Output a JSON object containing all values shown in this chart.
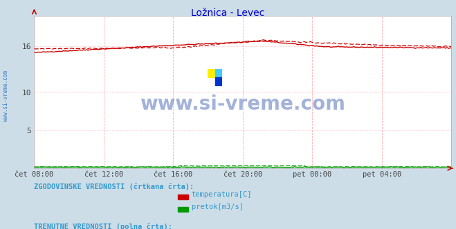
{
  "title": "Ložnica - Levec",
  "title_color": "#0000cc",
  "bg_color": "#ccdde8",
  "plot_bg_color": "#ffffff",
  "grid_color_h": "#ffaaaa",
  "grid_color_v": "#ffaaaa",
  "axis_color": "#cc0000",
  "watermark_text": "www.si-vreme.com",
  "watermark_color": "#3355aa",
  "left_label": "www.si-vreme.com",
  "left_label_color": "#3377cc",
  "ylim": [
    0,
    20
  ],
  "yticks": [
    5,
    10,
    16
  ],
  "ytick_labels": [
    "5",
    "10",
    "16"
  ],
  "xtick_labels": [
    "čet 08:00",
    "čet 12:00",
    "čet 16:00",
    "čet 20:00",
    "pet 00:00",
    "pet 04:00"
  ],
  "n_points": 288,
  "temp_color": "#cc0000",
  "flow_color": "#009900",
  "legend_section1": "ZGODOVINSKE VREDNOSTI (črtkana črta):",
  "legend_section2": "TRENUTNE VREDNOSTI (polna črta):",
  "legend_items": [
    "temperatura[C]",
    "pretok[m3/s]"
  ],
  "legend_text_color": "#3399cc",
  "logo_yellow": "#ffee00",
  "logo_cyan": "#44ccff",
  "logo_blue": "#0033cc"
}
